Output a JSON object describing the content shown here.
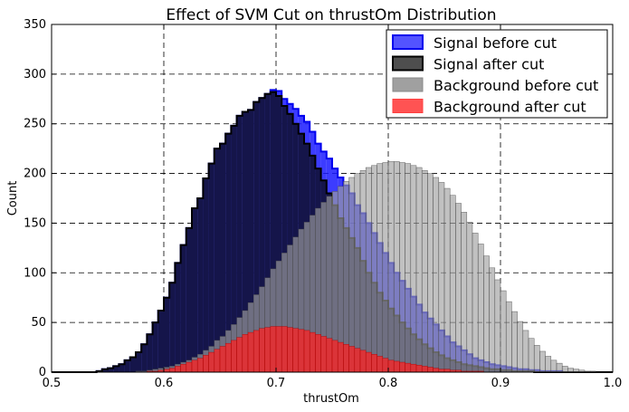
{
  "chart_data": {
    "type": "histogram",
    "title": "Effect of SVM Cut on thrustOm Distribution",
    "xlabel": "thrustOm",
    "ylabel": "Count",
    "xlim": [
      0.5,
      1.0
    ],
    "ylim": [
      0,
      350
    ],
    "xticks": [
      "0.5",
      "0.6",
      "0.7",
      "0.8",
      "0.9",
      "1.0"
    ],
    "yticks": [
      "0",
      "50",
      "100",
      "150",
      "200",
      "250",
      "300",
      "350"
    ],
    "grid": true,
    "legend_position": "top-right",
    "bins": {
      "start": 0.5,
      "width": 0.005,
      "count": 100
    },
    "series": [
      {
        "name": "Signal before cut",
        "style": "filled step",
        "fill": "#1a1aff",
        "edge": "#0000ee",
        "values": [
          0,
          0,
          0,
          0,
          0,
          0,
          0,
          0,
          1,
          3,
          4,
          6,
          8,
          12,
          15,
          20,
          28,
          38,
          50,
          62,
          75,
          90,
          110,
          128,
          145,
          165,
          175,
          195,
          210,
          225,
          230,
          240,
          248,
          258,
          262,
          264,
          272,
          276,
          280,
          284,
          283,
          275,
          270,
          265,
          258,
          252,
          242,
          230,
          222,
          215,
          205,
          196,
          188,
          180,
          168,
          160,
          150,
          140,
          130,
          120,
          110,
          100,
          92,
          84,
          76,
          68,
          60,
          54,
          48,
          42,
          36,
          30,
          26,
          22,
          18,
          14,
          12,
          10,
          8,
          7,
          6,
          5,
          4,
          3,
          3,
          2,
          2,
          1,
          1,
          1,
          1,
          0,
          0,
          0,
          0,
          0,
          0,
          0,
          0,
          0
        ]
      },
      {
        "name": "Signal after cut",
        "style": "filled step",
        "fill": "#15154a",
        "edge": "#000000",
        "values": [
          0,
          0,
          0,
          0,
          0,
          0,
          0,
          0,
          1,
          3,
          4,
          6,
          8,
          12,
          15,
          20,
          28,
          38,
          50,
          62,
          75,
          90,
          110,
          128,
          145,
          165,
          175,
          195,
          210,
          225,
          230,
          240,
          248,
          258,
          262,
          264,
          272,
          276,
          280,
          282,
          278,
          268,
          260,
          250,
          240,
          230,
          218,
          205,
          193,
          180,
          168,
          155,
          145,
          135,
          125,
          112,
          100,
          90,
          80,
          72,
          64,
          57,
          50,
          44,
          38,
          33,
          28,
          24,
          20,
          17,
          14,
          12,
          10,
          8,
          7,
          6,
          5,
          4,
          3,
          3,
          2,
          2,
          1,
          1,
          1,
          1,
          0,
          0,
          0,
          0,
          0,
          0,
          0,
          0,
          0,
          0,
          0,
          0,
          0,
          0
        ]
      },
      {
        "name": "Background before cut",
        "style": "bars",
        "fill": "#a0a0a0",
        "edge": "#444444",
        "values": [
          0,
          0,
          0,
          0,
          0,
          0,
          0,
          0,
          0,
          0,
          0,
          0,
          0,
          0,
          0,
          1,
          1,
          2,
          3,
          4,
          5,
          6,
          8,
          10,
          12,
          15,
          18,
          22,
          26,
          32,
          36,
          42,
          48,
          55,
          62,
          70,
          78,
          86,
          95,
          104,
          112,
          120,
          128,
          136,
          144,
          151,
          158,
          165,
          171,
          177,
          182,
          187,
          192,
          196,
          200,
          203,
          206,
          208,
          210,
          211,
          212,
          212,
          211,
          210,
          208,
          206,
          203,
          200,
          196,
          191,
          185,
          178,
          170,
          161,
          151,
          140,
          129,
          117,
          105,
          93,
          82,
          71,
          61,
          51,
          42,
          34,
          27,
          21,
          16,
          12,
          9,
          6,
          4,
          3,
          2,
          1,
          1,
          0,
          0,
          0
        ]
      },
      {
        "name": "Background after cut",
        "style": "bars",
        "fill": "#ff2020",
        "edge": "#aa0000",
        "values": [
          0,
          0,
          0,
          0,
          0,
          0,
          0,
          0,
          0,
          0,
          0,
          0,
          0,
          0,
          0,
          0,
          0,
          1,
          1,
          2,
          3,
          4,
          6,
          8,
          10,
          12,
          14,
          17,
          20,
          23,
          26,
          29,
          32,
          35,
          38,
          40,
          42,
          44,
          45,
          46,
          46,
          46,
          45,
          44,
          43,
          42,
          40,
          38,
          36,
          34,
          32,
          30,
          28,
          26,
          24,
          22,
          20,
          18,
          16,
          14,
          12,
          11,
          10,
          9,
          8,
          7,
          6,
          5,
          4,
          3,
          3,
          2,
          2,
          1,
          1,
          1,
          1,
          0,
          0,
          0,
          0,
          0,
          0,
          0,
          0,
          0,
          0,
          0,
          0,
          0,
          0,
          0,
          0,
          0,
          0,
          0,
          0,
          0,
          0,
          0
        ]
      }
    ]
  }
}
